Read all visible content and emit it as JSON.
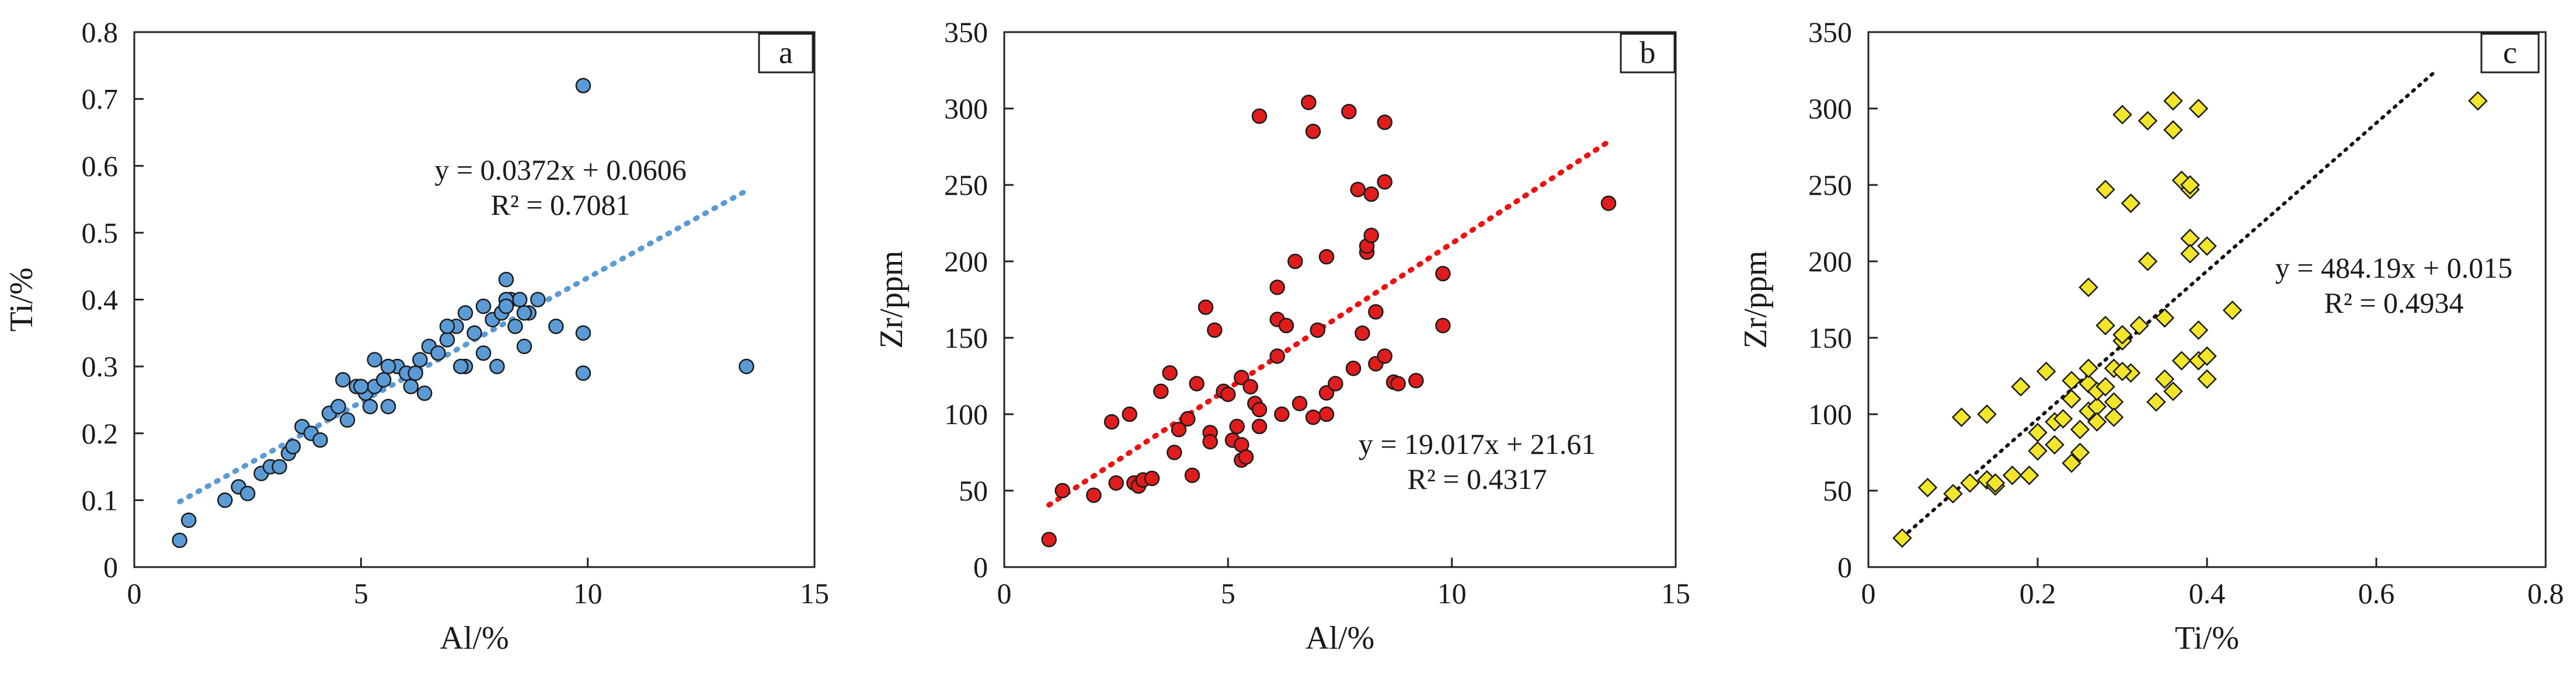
{
  "colors": {
    "axis": "#222222",
    "panel_a_marker": "#5b9bd5",
    "panel_a_trend": "#5b9bd5",
    "panel_b_marker": "#e01c1c",
    "panel_b_trend": "#ee1111",
    "panel_c_marker": "#f2e52a",
    "panel_c_trend": "#111111"
  },
  "chart_data": [
    {
      "type": "scatter",
      "panel_label": "a",
      "xlabel": "Al/%",
      "ylabel": "Ti/%",
      "xlim": [
        0,
        15
      ],
      "ylim": [
        0,
        0.8
      ],
      "x_ticks": [
        "0",
        "5",
        "10",
        "15"
      ],
      "y_ticks": [
        "0",
        "0.1",
        "0.2",
        "0.3",
        "0.4",
        "0.5",
        "0.6",
        "0.7",
        "0.8"
      ],
      "marker": "circle",
      "trendline": {
        "slope": 0.0372,
        "intercept": 0.0606,
        "x_range": [
          1.0,
          13.5
        ]
      },
      "equation": "y = 0.0372x + 0.0606",
      "r2": "R² = 0.7081",
      "x": [
        1.0,
        1.2,
        2.0,
        2.3,
        2.5,
        2.8,
        3.0,
        3.2,
        3.4,
        3.5,
        3.7,
        3.9,
        4.1,
        4.3,
        4.5,
        4.7,
        4.9,
        5.1,
        5.2,
        5.3,
        5.5,
        5.6,
        5.8,
        6.0,
        6.1,
        6.3,
        6.5,
        6.7,
        6.9,
        7.1,
        7.3,
        7.5,
        7.7,
        7.9,
        8.1,
        8.2,
        8.3,
        8.5,
        8.7,
        8.9,
        9.3,
        9.9,
        9.9,
        9.9,
        13.5,
        5.3,
        5.6,
        6.4,
        6.9,
        7.3,
        8.0,
        8.4,
        8.6,
        4.6,
        5.0,
        6.2,
        7.7,
        8.2,
        8.6,
        8.2,
        7.2
      ],
      "y": [
        0.04,
        0.07,
        0.1,
        0.12,
        0.11,
        0.14,
        0.15,
        0.15,
        0.17,
        0.18,
        0.21,
        0.2,
        0.19,
        0.23,
        0.24,
        0.22,
        0.27,
        0.26,
        0.24,
        0.27,
        0.28,
        0.24,
        0.3,
        0.29,
        0.27,
        0.31,
        0.33,
        0.32,
        0.34,
        0.36,
        0.38,
        0.35,
        0.39,
        0.37,
        0.38,
        0.43,
        0.4,
        0.4,
        0.38,
        0.4,
        0.36,
        0.72,
        0.35,
        0.29,
        0.3,
        0.31,
        0.3,
        0.26,
        0.36,
        0.3,
        0.3,
        0.36,
        0.33,
        0.28,
        0.27,
        0.29,
        0.32,
        0.4,
        0.38,
        0.39,
        0.3
      ]
    },
    {
      "type": "scatter",
      "panel_label": "b",
      "xlabel": "Al/%",
      "ylabel": "Zr/ppm",
      "xlim": [
        0,
        15
      ],
      "ylim": [
        0,
        350
      ],
      "x_ticks": [
        "0",
        "5",
        "10",
        "15"
      ],
      "y_ticks": [
        "0",
        "50",
        "100",
        "150",
        "200",
        "250",
        "300",
        "350"
      ],
      "marker": "circle",
      "trendline": {
        "slope": 19.017,
        "intercept": 21.61,
        "x_range": [
          1.0,
          13.5
        ]
      },
      "equation": "y = 19.017x + 21.61",
      "r2": "R² = 0.4317",
      "x": [
        1.0,
        1.3,
        2.0,
        2.4,
        2.5,
        2.8,
        2.9,
        3.0,
        3.1,
        3.3,
        3.5,
        3.7,
        3.8,
        3.9,
        4.1,
        4.2,
        4.3,
        4.5,
        4.6,
        4.7,
        4.9,
        5.0,
        5.1,
        5.2,
        5.3,
        5.3,
        5.3,
        5.4,
        5.6,
        5.7,
        5.7,
        6.1,
        6.1,
        6.2,
        6.3,
        6.5,
        6.6,
        6.8,
        6.9,
        7.0,
        7.2,
        7.2,
        7.4,
        7.7,
        7.8,
        7.9,
        8.0,
        8.1,
        8.1,
        8.2,
        8.2,
        8.3,
        8.3,
        8.5,
        8.5,
        8.5,
        8.7,
        8.8,
        9.2,
        9.8,
        9.8,
        13.5,
        5.7,
        6.9,
        7.2,
        6.1,
        4.6,
        5.5
      ],
      "y": [
        18,
        50,
        47,
        95,
        55,
        100,
        55,
        53,
        57,
        58,
        115,
        127,
        75,
        90,
        97,
        60,
        120,
        170,
        88,
        155,
        115,
        113,
        83,
        92,
        80,
        70,
        124,
        72,
        107,
        103,
        295,
        183,
        162,
        100,
        158,
        200,
        107,
        304,
        285,
        155,
        203,
        114,
        120,
        298,
        130,
        247,
        153,
        206,
        210,
        244,
        217,
        133,
        167,
        138,
        291,
        252,
        121,
        120,
        122,
        192,
        158,
        238,
        92,
        98,
        100,
        138,
        82,
        118
      ]
    },
    {
      "type": "scatter",
      "panel_label": "c",
      "xlabel": "Ti/%",
      "ylabel": "Zr/ppm",
      "xlim": [
        0,
        0.8
      ],
      "ylim": [
        0,
        350
      ],
      "x_ticks": [
        "0",
        "0.2",
        "0.4",
        "0.6",
        "0.8"
      ],
      "y_ticks": [
        "0",
        "50",
        "100",
        "150",
        "200",
        "250",
        "300",
        "350"
      ],
      "marker": "diamond",
      "trendline": {
        "slope": 484.19,
        "intercept": 0.015,
        "x_range": [
          0.04,
          0.67
        ]
      },
      "equation": "y = 484.19x + 0.015",
      "r2": "R² = 0.4934",
      "x": [
        0.04,
        0.07,
        0.1,
        0.11,
        0.12,
        0.14,
        0.14,
        0.15,
        0.17,
        0.18,
        0.19,
        0.2,
        0.2,
        0.21,
        0.22,
        0.22,
        0.23,
        0.24,
        0.24,
        0.25,
        0.25,
        0.26,
        0.26,
        0.26,
        0.27,
        0.27,
        0.27,
        0.28,
        0.28,
        0.29,
        0.29,
        0.29,
        0.3,
        0.3,
        0.3,
        0.31,
        0.31,
        0.32,
        0.33,
        0.33,
        0.34,
        0.35,
        0.35,
        0.36,
        0.36,
        0.37,
        0.37,
        0.38,
        0.38,
        0.38,
        0.39,
        0.39,
        0.39,
        0.4,
        0.4,
        0.4,
        0.43,
        0.72,
        0.38,
        0.36,
        0.3,
        0.26,
        0.24,
        0.28,
        0.15
      ],
      "y": [
        19,
        52,
        48,
        98,
        55,
        57,
        100,
        53,
        60,
        118,
        60,
        88,
        76,
        128,
        80,
        95,
        97,
        68,
        122,
        75,
        90,
        120,
        102,
        183,
        105,
        115,
        95,
        158,
        247,
        108,
        130,
        98,
        148,
        152,
        296,
        238,
        127,
        158,
        200,
        292,
        108,
        163,
        123,
        305,
        286,
        253,
        135,
        247,
        215,
        205,
        155,
        135,
        300,
        123,
        210,
        138,
        168,
        305,
        250,
        115,
        128,
        130,
        110,
        118,
        55
      ]
    }
  ]
}
